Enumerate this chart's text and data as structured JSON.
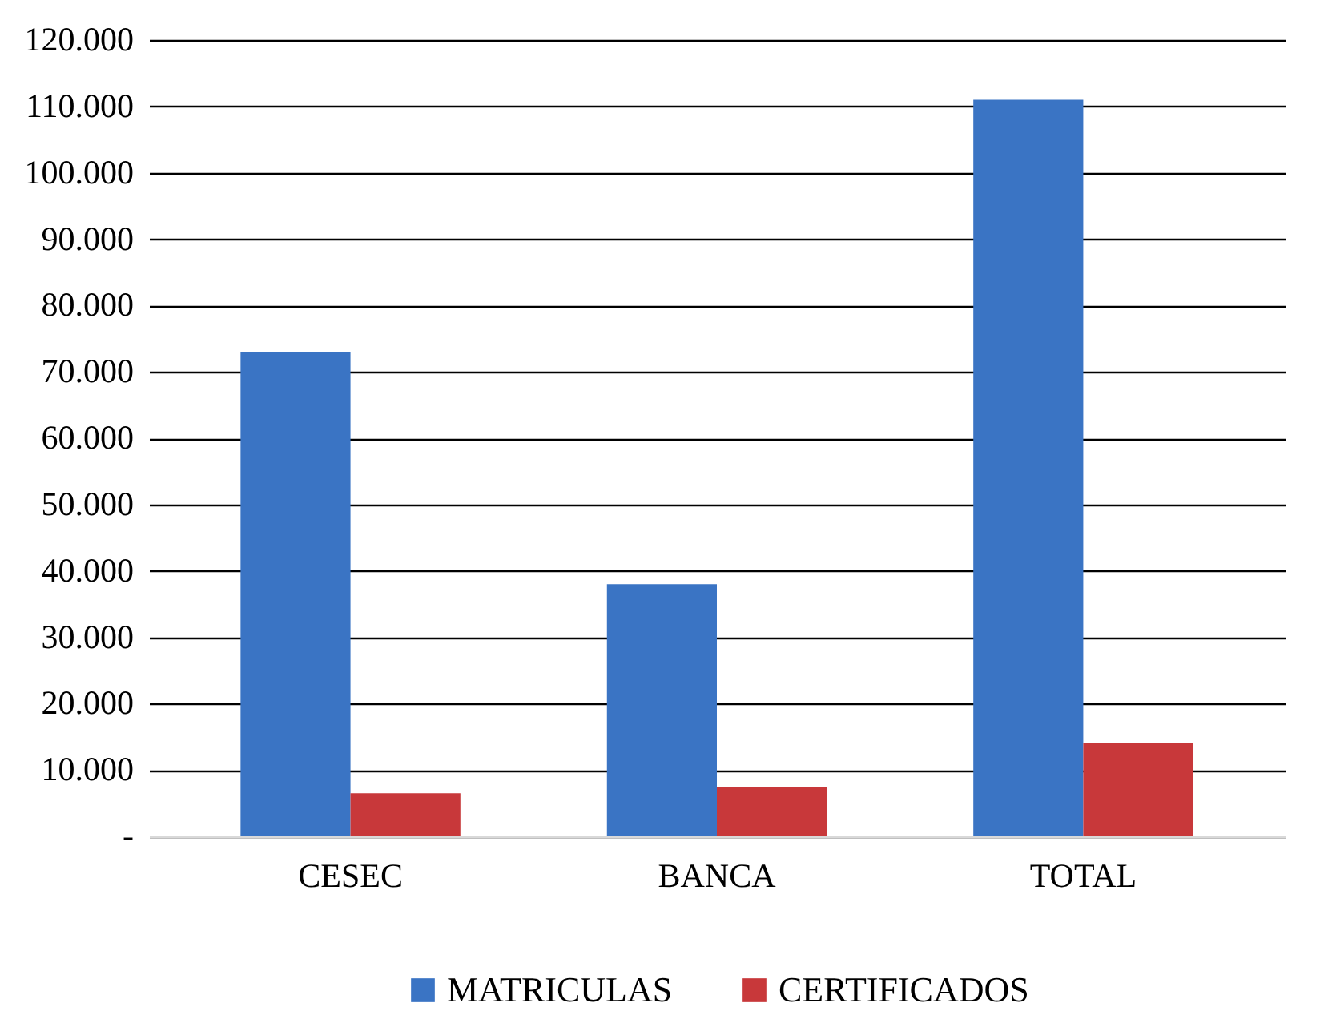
{
  "chart_data": {
    "type": "bar",
    "categories": [
      "CESEC",
      "BANCA",
      "TOTAL"
    ],
    "series": [
      {
        "name": "MATRICULAS",
        "color": "#3a74c4",
        "values": [
          73000,
          38000,
          111000
        ]
      },
      {
        "name": "CERTIFICADOS",
        "color": "#c8383a",
        "values": [
          6500,
          7500,
          14000
        ]
      }
    ],
    "ylim": [
      0,
      120000
    ],
    "yticks": [
      {
        "value": 0,
        "label": "-"
      },
      {
        "value": 10000,
        "label": "10.000"
      },
      {
        "value": 20000,
        "label": "20.000"
      },
      {
        "value": 30000,
        "label": "30.000"
      },
      {
        "value": 40000,
        "label": "40.000"
      },
      {
        "value": 50000,
        "label": "50.000"
      },
      {
        "value": 60000,
        "label": "60.000"
      },
      {
        "value": 70000,
        "label": "70.000"
      },
      {
        "value": 80000,
        "label": "80.000"
      },
      {
        "value": 90000,
        "label": "90.000"
      },
      {
        "value": 100000,
        "label": "100.000"
      },
      {
        "value": 110000,
        "label": "110.000"
      },
      {
        "value": 120000,
        "label": "120.000"
      }
    ],
    "grid": "y",
    "legend": "bottom"
  }
}
